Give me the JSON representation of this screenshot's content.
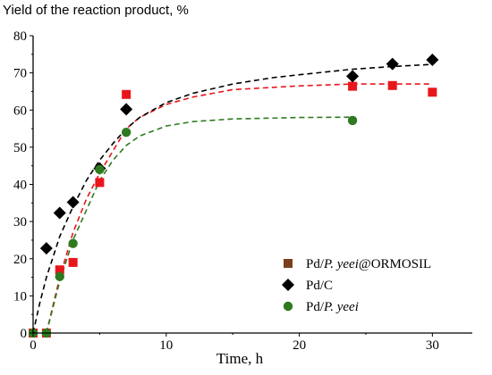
{
  "chart_data": {
    "type": "scatter",
    "ylabel": "Yield of the reaction product, %",
    "xlabel": "Time, h",
    "xlim": [
      0,
      33
    ],
    "ylim": [
      0,
      80
    ],
    "x_ticks": [
      0,
      10,
      20,
      30
    ],
    "y_ticks": [
      0,
      10,
      20,
      30,
      40,
      50,
      60,
      70,
      80
    ],
    "grid": false,
    "legend_position": "bottom-right",
    "series": [
      {
        "name": "Pd/P. yeei@ORMOSIL",
        "name_parts": [
          "Pd/",
          "P. yeei",
          "@ORMOSIL"
        ],
        "marker": "square",
        "color": "#e8161b",
        "legend_marker_color": "#7b3f1e",
        "x": [
          0,
          1,
          2,
          3,
          5,
          7,
          24,
          27,
          30
        ],
        "y": [
          0,
          0,
          17,
          19,
          40.5,
          64.2,
          66.4,
          66.6,
          64.8
        ],
        "fit": {
          "color": "#e8161b",
          "x": [
            1,
            2,
            3,
            4,
            5,
            6,
            7,
            8,
            10,
            12,
            15,
            20,
            24,
            27,
            30
          ],
          "y": [
            0,
            15,
            27,
            36,
            43,
            49,
            55,
            58,
            61.5,
            63.5,
            65.5,
            66.5,
            67,
            67,
            67
          ]
        }
      },
      {
        "name": "Pd/C",
        "name_parts": [
          "Pd/C",
          "",
          ""
        ],
        "marker": "diamond",
        "color": "#000000",
        "x": [
          1,
          2,
          3,
          5,
          7,
          24,
          27,
          30
        ],
        "y": [
          22.8,
          32.3,
          35.2,
          44.3,
          60.2,
          69.1,
          72.4,
          73.5
        ],
        "fit": {
          "color": "#000000",
          "x": [
            0,
            0.5,
            1,
            2,
            3,
            4,
            5,
            6,
            7,
            8,
            10,
            12,
            15,
            18,
            20,
            24,
            27,
            30
          ],
          "y": [
            0,
            8,
            15,
            26,
            34,
            41,
            46.5,
            51,
            55,
            58,
            62,
            64.5,
            67,
            68.7,
            69.5,
            71,
            71.7,
            72.3
          ]
        }
      },
      {
        "name": "Pd/P. yeei",
        "name_parts": [
          "Pd/",
          "P. yeei",
          ""
        ],
        "marker": "circle",
        "color": "#2e7a1f",
        "x": [
          0,
          1,
          2,
          3,
          5,
          7,
          24
        ],
        "y": [
          0,
          0,
          15.2,
          24.1,
          44,
          54,
          57.2
        ],
        "fit": {
          "color": "#2e7a1f",
          "x": [
            1,
            2,
            3,
            4,
            5,
            6,
            7,
            8,
            10,
            12,
            15,
            20,
            24
          ],
          "y": [
            0,
            14,
            25,
            33,
            41,
            46.5,
            50.5,
            53,
            55.7,
            56.9,
            57.6,
            58,
            58.1
          ]
        }
      }
    ]
  }
}
